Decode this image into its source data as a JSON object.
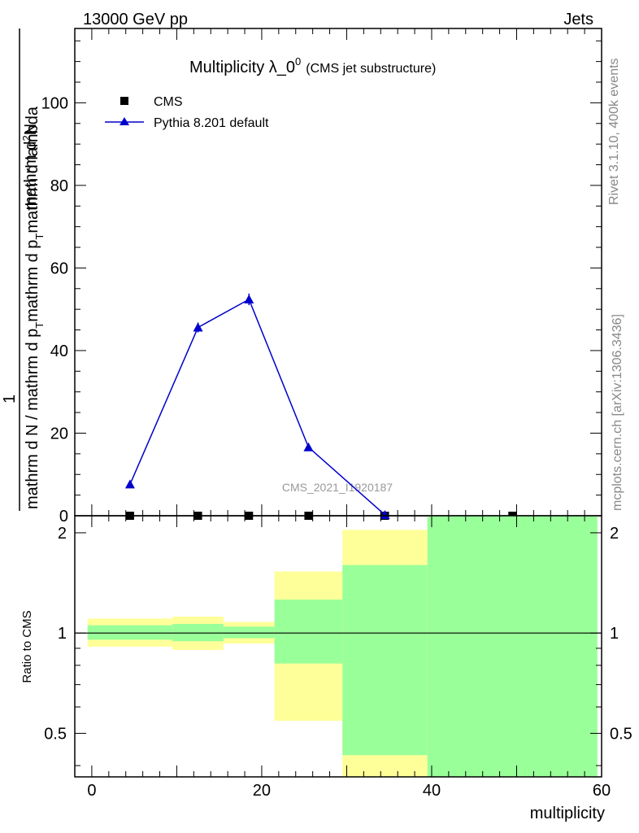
{
  "header": {
    "left": "13000 GeV pp",
    "right": "Jets"
  },
  "side_labels": {
    "rivet": "Rivet 3.1.10,  400k events",
    "mcplots": "mcplots.cern.ch [arXiv:1306.3436]"
  },
  "colors": {
    "mc": "#0000cc",
    "band_inner": "#99ff99",
    "band_outer": "#ffff99",
    "data": "#000000",
    "watermark": "#999999"
  },
  "chart_data": [
    {
      "type": "line",
      "title_main": "Multiplicity λ_0",
      "title_sup": "0",
      "title_sub": "(CMS jet substructure)",
      "ylabel_numerator": "mathrm d",
      "ylabel_numerator_sup": "2",
      "ylabel_numerator_end": "N",
      "ylabel_one": "1",
      "ylabel_denominator": "mathrm d N / mathrm d p",
      "ylabel_denominator_sub": "T",
      "ylabel_denominator_end": "mathrm d p",
      "ylabel_denominator_sub2": "T",
      "ylabel_denominator_end2": "mathrm d lambda",
      "watermark": "CMS_2021_I1920187",
      "xlim": [
        -2,
        60
      ],
      "ylim": [
        0,
        118
      ],
      "yticks": [
        0,
        20,
        40,
        60,
        80,
        100
      ],
      "ytick_labels": [
        "0",
        "20",
        "40",
        "60",
        "80",
        "100"
      ],
      "legend_position": "top-left",
      "series": [
        {
          "name": "CMS",
          "marker": "square",
          "x": [
            4.5,
            12.5,
            18.5,
            25.5,
            34.5,
            49.5
          ],
          "y": [
            0,
            0,
            0,
            0,
            0,
            0
          ]
        },
        {
          "name": "Pythia 8.201 default",
          "marker": "triangle",
          "x": [
            4.5,
            12.5,
            18.5,
            25.5,
            34.5
          ],
          "y": [
            7.6,
            45.6,
            52.4,
            16.6,
            0.2
          ],
          "yerr": [
            0.4,
            1.2,
            1.4,
            0.5,
            0.1
          ]
        }
      ]
    },
    {
      "type": "area",
      "ylabel": "Ratio to CMS",
      "xlabel": "multiplicity",
      "xlim": [
        -2,
        60
      ],
      "ylim": [
        0.37,
        2.25
      ],
      "log_y": true,
      "xticks": [
        0,
        20,
        40,
        60
      ],
      "xtick_labels": [
        "0",
        "20",
        "40",
        "60"
      ],
      "yticks": [
        0.5,
        1,
        2
      ],
      "ytick_labels": [
        "0.5",
        "1",
        "2"
      ],
      "reference_line": 1,
      "bins": [
        {
          "lo": -0.5,
          "hi": 9.5,
          "inner": [
            0.955,
            1.055
          ],
          "outer": [
            0.91,
            1.105
          ]
        },
        {
          "lo": 9.5,
          "hi": 15.5,
          "inner": [
            0.945,
            1.065
          ],
          "outer": [
            0.89,
            1.12
          ]
        },
        {
          "lo": 15.5,
          "hi": 21.5,
          "inner": [
            0.965,
            1.045
          ],
          "outer": [
            0.93,
            1.08
          ]
        },
        {
          "lo": 21.5,
          "hi": 29.5,
          "inner": [
            0.81,
            1.26
          ],
          "outer": [
            0.545,
            1.53
          ]
        },
        {
          "lo": 29.5,
          "hi": 39.5,
          "inner": [
            0.43,
            1.6
          ],
          "outer": [
            0.37,
            2.04
          ]
        },
        {
          "lo": 39.5,
          "hi": 59.5,
          "inner": [
            0.37,
            2.25
          ],
          "outer": [
            0.37,
            2.25
          ]
        }
      ]
    }
  ]
}
